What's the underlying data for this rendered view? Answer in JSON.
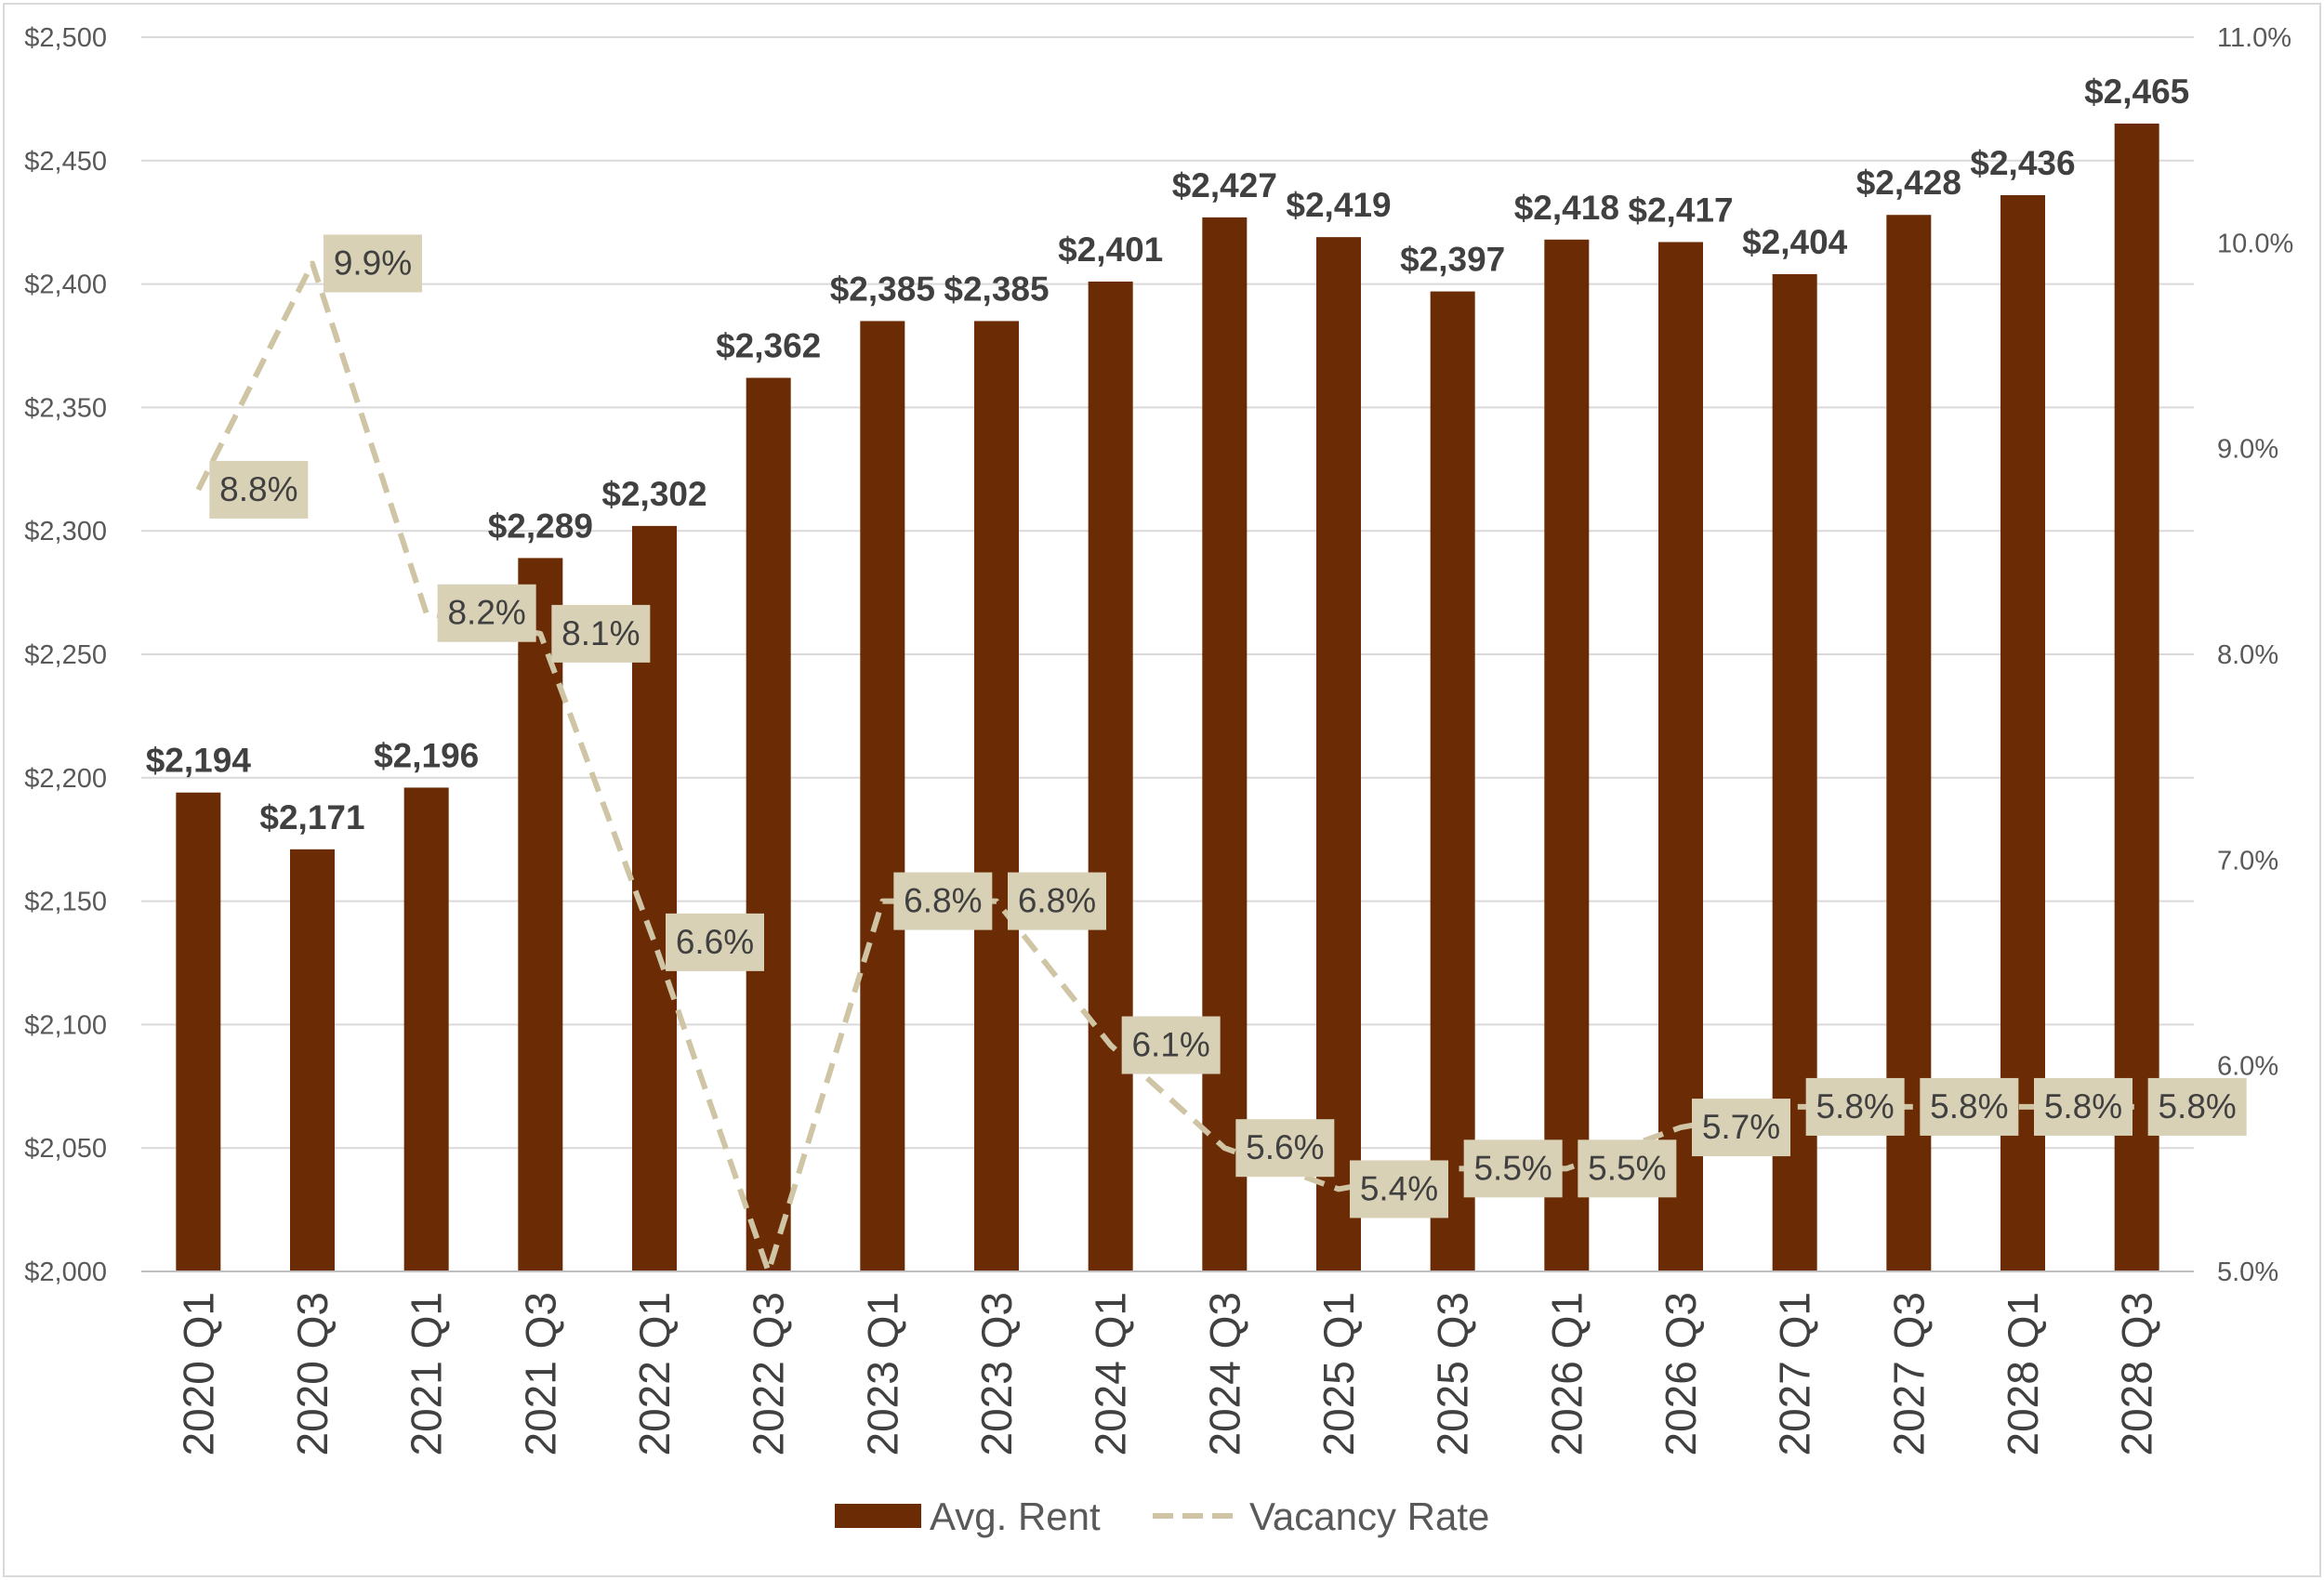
{
  "chart_data": {
    "type": "bar",
    "categories": [
      "2020 Q1",
      "2020 Q3",
      "2021 Q1",
      "2021 Q3",
      "2022 Q1",
      "2022 Q3",
      "2023 Q1",
      "2023 Q3",
      "2024 Q1",
      "2024 Q3",
      "2025 Q1",
      "2025 Q3",
      "2026 Q1",
      "2026 Q3",
      "2027 Q1",
      "2027 Q3",
      "2028 Q1",
      "2028 Q3"
    ],
    "series": [
      {
        "name": "Avg. Rent",
        "type": "bar",
        "axis": "left",
        "color": "#6b2c05",
        "values": [
          2194,
          2171,
          2196,
          2289,
          2302,
          2362,
          2385,
          2385,
          2401,
          2427,
          2419,
          2397,
          2418,
          2417,
          2404,
          2428,
          2436,
          2465
        ],
        "labels": [
          "$2,194",
          "$2,171",
          "$2,196",
          "$2,289",
          "$2,302",
          "$2,362",
          "$2,385",
          "$2,385",
          "$2,401",
          "$2,427",
          "$2,419",
          "$2,397",
          "$2,418",
          "$2,417",
          "$2,404",
          "$2,428",
          "$2,436",
          "$2,465"
        ]
      },
      {
        "name": "Vacancy Rate",
        "type": "line",
        "style": "dashed",
        "axis": "right",
        "color": "#cfc5a5",
        "label_bg": "#d8d1b6",
        "values": [
          8.8,
          9.9,
          8.2,
          8.1,
          6.6,
          5.0,
          6.8,
          6.8,
          6.1,
          5.6,
          5.4,
          5.5,
          5.5,
          5.7,
          5.8,
          5.8,
          5.8,
          5.8
        ],
        "labels": [
          "8.8%",
          "9.9%",
          "8.2%",
          "8.1%",
          "6.6%",
          "",
          "6.8%",
          "6.8%",
          "6.1%",
          "5.6%",
          "5.4%",
          "5.5%",
          "5.5%",
          "5.7%",
          "5.8%",
          "5.8%",
          "5.8%",
          "5.8%"
        ]
      }
    ],
    "y_left": {
      "min": 2000,
      "max": 2500,
      "ticks": [
        2000,
        2050,
        2100,
        2150,
        2200,
        2250,
        2300,
        2350,
        2400,
        2450,
        2500
      ],
      "tick_labels": [
        "$2,000",
        "$2,050",
        "$2,100",
        "$2,150",
        "$2,200",
        "$2,250",
        "$2,300",
        "$2,350",
        "$2,400",
        "$2,450",
        "$2,500"
      ]
    },
    "y_right": {
      "min": 5.0,
      "max": 11.0,
      "ticks": [
        5,
        6,
        7,
        8,
        9,
        10,
        11
      ],
      "tick_labels": [
        "5.0%",
        "6.0%",
        "7.0%",
        "8.0%",
        "9.0%",
        "10.0%",
        "11.0%"
      ]
    },
    "grid": true,
    "legend_position": "bottom",
    "title": "",
    "xlabel": "",
    "ylabel": ""
  }
}
